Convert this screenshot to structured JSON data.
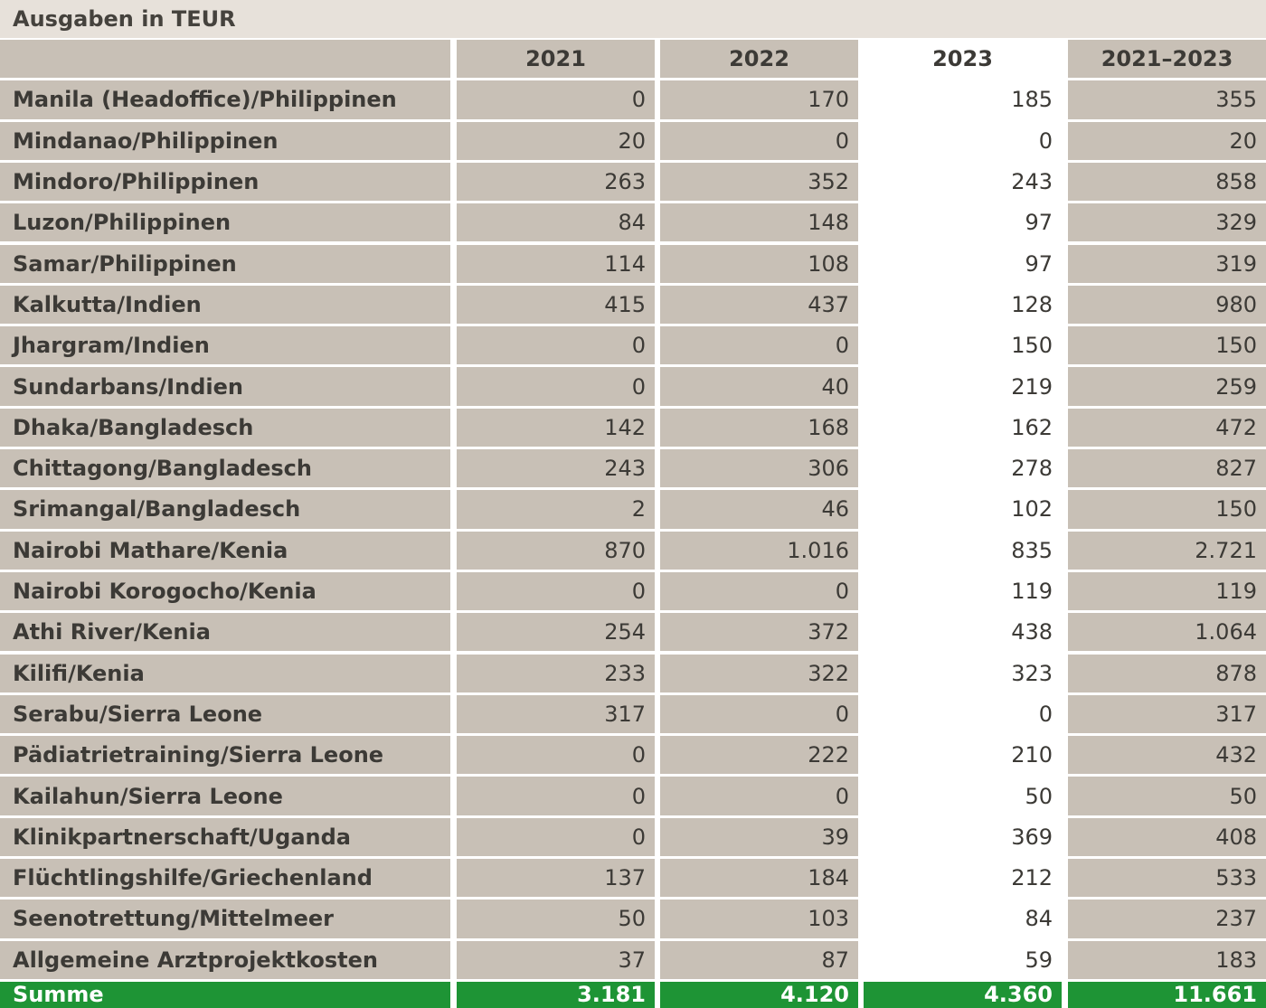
{
  "caption": "Ausgaben in TEUR",
  "header": {
    "label": "",
    "years": [
      "2021",
      "2022",
      "2023",
      "2021–2023"
    ]
  },
  "rows": [
    {
      "label": "Manila (Headoffice)/Philippinen",
      "values": [
        "0",
        "170",
        "185",
        "355"
      ]
    },
    {
      "label": "Mindanao/Philippinen",
      "values": [
        "20",
        "0",
        "0",
        "20"
      ]
    },
    {
      "label": "Mindoro/Philippinen",
      "values": [
        "263",
        "352",
        "243",
        "858"
      ]
    },
    {
      "label": "Luzon/Philippinen",
      "values": [
        "84",
        "148",
        "97",
        "329"
      ]
    },
    {
      "label": "Samar/Philippinen",
      "values": [
        "114",
        "108",
        "97",
        "319"
      ]
    },
    {
      "label": "Kalkutta/Indien",
      "values": [
        "415",
        "437",
        "128",
        "980"
      ]
    },
    {
      "label": "Jhargram/Indien",
      "values": [
        "0",
        "0",
        "150",
        "150"
      ]
    },
    {
      "label": "Sundarbans/Indien",
      "values": [
        "0",
        "40",
        "219",
        "259"
      ]
    },
    {
      "label": "Dhaka/Bangladesch",
      "values": [
        "142",
        "168",
        "162",
        "472"
      ]
    },
    {
      "label": "Chittagong/Bangladesch",
      "values": [
        "243",
        "306",
        "278",
        "827"
      ]
    },
    {
      "label": "Srimangal/Bangladesch",
      "values": [
        "2",
        "46",
        "102",
        "150"
      ]
    },
    {
      "label": "Nairobi Mathare/Kenia",
      "values": [
        "870",
        "1.016",
        "835",
        "2.721"
      ]
    },
    {
      "label": "Nairobi Korogocho/Kenia",
      "values": [
        "0",
        "0",
        "119",
        "119"
      ]
    },
    {
      "label": "Athi River/Kenia",
      "values": [
        "254",
        "372",
        "438",
        "1.064"
      ]
    },
    {
      "label": "Kilifi/Kenia",
      "values": [
        "233",
        "322",
        "323",
        "878"
      ]
    },
    {
      "label": "Serabu/Sierra Leone",
      "values": [
        "317",
        "0",
        "0",
        "317"
      ]
    },
    {
      "label": "Pädiatrietraining/Sierra Leone",
      "values": [
        "0",
        "222",
        "210",
        "432"
      ]
    },
    {
      "label": "Kailahun/Sierra Leone",
      "values": [
        "0",
        "0",
        "50",
        "50"
      ]
    },
    {
      "label": "Klinikpartnerschaft/Uganda",
      "values": [
        "0",
        "39",
        "369",
        "408"
      ]
    },
    {
      "label": "Flüchtlingshilfe/Griechenland",
      "values": [
        "137",
        "184",
        "212",
        "533"
      ]
    },
    {
      "label": "Seenotrettung/Mittelmeer",
      "values": [
        "50",
        "103",
        "84",
        "237"
      ]
    },
    {
      "label": "Allgemeine Arztprojektkosten",
      "values": [
        "37",
        "87",
        "59",
        "183"
      ]
    }
  ],
  "total": {
    "label": "Summe",
    "values": [
      "3.181",
      "4.120",
      "4.360",
      "11.661"
    ]
  },
  "colors": {
    "caption_bg": "#e7e1da",
    "cell_bg": "#c8c0b6",
    "highlight_bg": "#ffffff",
    "total_bg": "#1e9435",
    "total_text": "#ffffff",
    "text": "#3c3a36"
  },
  "chart_data": {
    "type": "table",
    "title": "Ausgaben in TEUR",
    "columns": [
      "2021",
      "2022",
      "2023",
      "2021–2023"
    ],
    "highlighted_column": "2023",
    "rows": [
      {
        "label": "Manila (Headoffice)/Philippinen",
        "values": [
          0,
          170,
          185,
          355
        ]
      },
      {
        "label": "Mindanao/Philippinen",
        "values": [
          20,
          0,
          0,
          20
        ]
      },
      {
        "label": "Mindoro/Philippinen",
        "values": [
          263,
          352,
          243,
          858
        ]
      },
      {
        "label": "Luzon/Philippinen",
        "values": [
          84,
          148,
          97,
          329
        ]
      },
      {
        "label": "Samar/Philippinen",
        "values": [
          114,
          108,
          97,
          319
        ]
      },
      {
        "label": "Kalkutta/Indien",
        "values": [
          415,
          437,
          128,
          980
        ]
      },
      {
        "label": "Jhargram/Indien",
        "values": [
          0,
          0,
          150,
          150
        ]
      },
      {
        "label": "Sundarbans/Indien",
        "values": [
          0,
          40,
          219,
          259
        ]
      },
      {
        "label": "Dhaka/Bangladesch",
        "values": [
          142,
          168,
          162,
          472
        ]
      },
      {
        "label": "Chittagong/Bangladesch",
        "values": [
          243,
          306,
          278,
          827
        ]
      },
      {
        "label": "Srimangal/Bangladesch",
        "values": [
          2,
          46,
          102,
          150
        ]
      },
      {
        "label": "Nairobi Mathare/Kenia",
        "values": [
          870,
          1016,
          835,
          2721
        ]
      },
      {
        "label": "Nairobi Korogocho/Kenia",
        "values": [
          0,
          0,
          119,
          119
        ]
      },
      {
        "label": "Athi River/Kenia",
        "values": [
          254,
          372,
          438,
          1064
        ]
      },
      {
        "label": "Kilifi/Kenia",
        "values": [
          233,
          322,
          323,
          878
        ]
      },
      {
        "label": "Serabu/Sierra Leone",
        "values": [
          317,
          0,
          0,
          317
        ]
      },
      {
        "label": "Pädiatrietraining/Sierra Leone",
        "values": [
          0,
          222,
          210,
          432
        ]
      },
      {
        "label": "Kailahun/Sierra Leone",
        "values": [
          0,
          0,
          50,
          50
        ]
      },
      {
        "label": "Klinikpartnerschaft/Uganda",
        "values": [
          0,
          39,
          369,
          408
        ]
      },
      {
        "label": "Flüchtlingshilfe/Griechenland",
        "values": [
          137,
          184,
          212,
          533
        ]
      },
      {
        "label": "Seenotrettung/Mittelmeer",
        "values": [
          50,
          103,
          84,
          237
        ]
      },
      {
        "label": "Allgemeine Arztprojektkosten",
        "values": [
          37,
          87,
          59,
          183
        ]
      }
    ],
    "total": {
      "label": "Summe",
      "values": [
        3181,
        4120,
        4360,
        11661
      ]
    }
  }
}
